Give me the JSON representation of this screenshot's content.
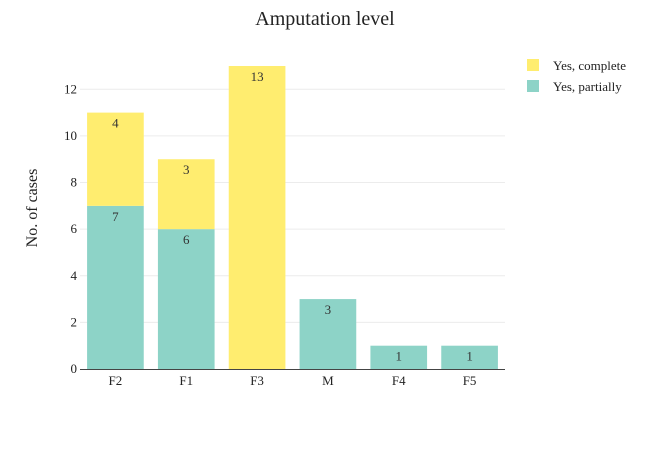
{
  "chart_data": {
    "type": "bar",
    "stacked": true,
    "title": "Amputation level",
    "xlabel": "",
    "ylabel": "No. of cases",
    "categories": [
      "F2",
      "F1",
      "F3",
      "M",
      "F4",
      "F5"
    ],
    "ylim": [
      0,
      13
    ],
    "yticks": [
      0,
      2,
      4,
      6,
      8,
      10,
      12
    ],
    "grid": true,
    "legend_position": "top-right",
    "series": [
      {
        "name": "Yes, partially",
        "color": "#8dd3c7",
        "values": [
          7,
          6,
          0,
          3,
          1,
          1
        ]
      },
      {
        "name": "Yes, complete",
        "color": "#ffed6f",
        "values": [
          4,
          3,
          13,
          0,
          0,
          0
        ]
      }
    ],
    "legend_order": [
      "Yes, complete",
      "Yes, partially"
    ]
  }
}
